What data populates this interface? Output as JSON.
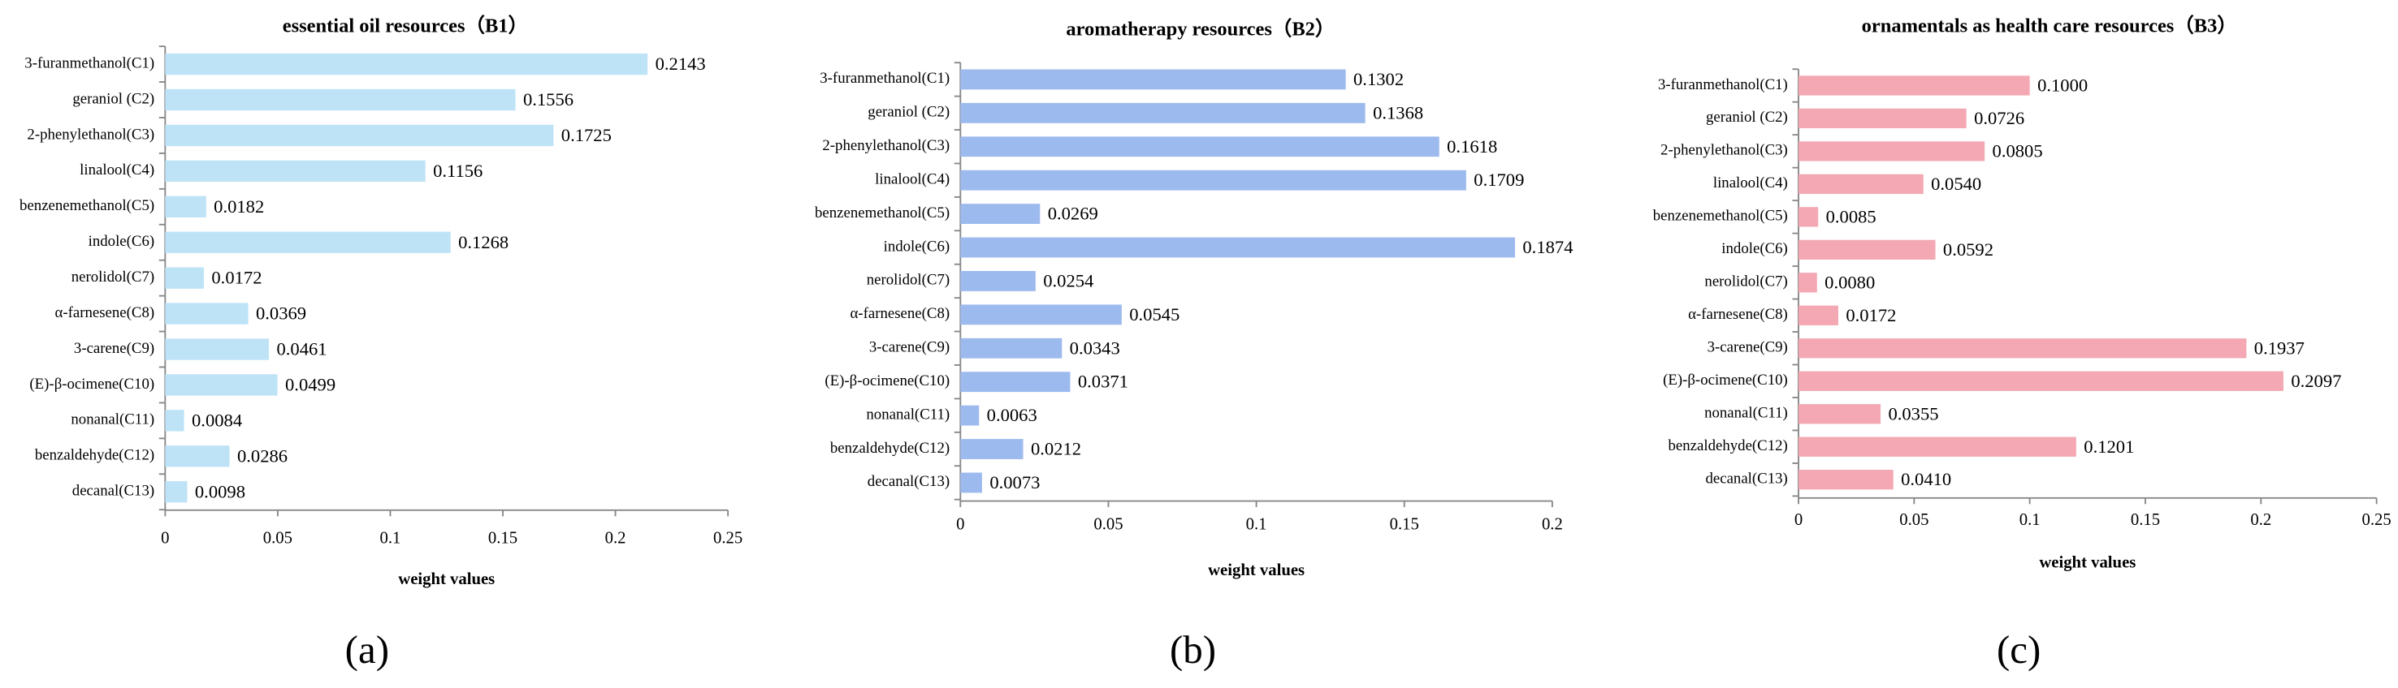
{
  "chart_data": [
    {
      "type": "bar",
      "orientation": "horizontal",
      "title": "essential oil resources（B1）",
      "xlabel": "weight values",
      "panel": "(a)",
      "categories": [
        "3-furanmethanol(C1)",
        "geraniol (C2)",
        "2-phenylethanol(C3)",
        "linalool(C4)",
        "benzenemethanol(C5)",
        "indole(C6)",
        "nerolidol(C7)",
        "α-farnesene(C8)",
        "3-carene(C9)",
        "(E)-β-ocimene(C10)",
        "nonanal(C11)",
        "benzaldehyde(C12)",
        "decanal(C13)"
      ],
      "values": [
        0.2143,
        0.1556,
        0.1725,
        0.1156,
        0.0182,
        0.1268,
        0.0172,
        0.0369,
        0.0461,
        0.0499,
        0.0084,
        0.0286,
        0.0098
      ],
      "value_labels": [
        "0.2143",
        "0.1556",
        "0.1725",
        "0.1156",
        "0.0182",
        "0.1268",
        "0.0172",
        "0.0369",
        "0.0461",
        "0.0499",
        "0.0084",
        "0.0286",
        "0.0098"
      ],
      "color": "#bfe3f6",
      "xlim": [
        0,
        0.25
      ],
      "xticks": [
        0,
        0.05,
        0.1,
        0.15,
        0.2,
        0.25
      ]
    },
    {
      "type": "bar",
      "orientation": "horizontal",
      "title": "aromatherapy resources（B2）",
      "xlabel": "weight values",
      "panel": "(b)",
      "categories": [
        "3-furanmethanol(C1)",
        "geraniol (C2)",
        "2-phenylethanol(C3)",
        "linalool(C4)",
        "benzenemethanol(C5)",
        "indole(C6)",
        "nerolidol(C7)",
        "α-farnesene(C8)",
        "3-carene(C9)",
        "(E)-β-ocimene(C10)",
        "nonanal(C11)",
        "benzaldehyde(C12)",
        "decanal(C13)"
      ],
      "values": [
        0.1302,
        0.1368,
        0.1618,
        0.1709,
        0.0269,
        0.1874,
        0.0254,
        0.0545,
        0.0343,
        0.0371,
        0.0063,
        0.0212,
        0.0073
      ],
      "value_labels": [
        "0.1302",
        "0.1368",
        "0.1618",
        "0.1709",
        "0.0269",
        "0.1874",
        "0.0254",
        "0.0545",
        "0.0343",
        "0.0371",
        "0.0063",
        "0.0212",
        "0.0073"
      ],
      "color": "#9dbaee",
      "xlim": [
        0,
        0.2
      ],
      "xticks": [
        0,
        0.05,
        0.1,
        0.15,
        0.2
      ]
    },
    {
      "type": "bar",
      "orientation": "horizontal",
      "title": "ornamentals as health care resources（B3）",
      "xlabel": "weight values",
      "panel": "(c)",
      "categories": [
        "3-furanmethanol(C1)",
        "geraniol (C2)",
        "2-phenylethanol(C3)",
        "linalool(C4)",
        "benzenemethanol(C5)",
        "indole(C6)",
        "nerolidol(C7)",
        "α-farnesene(C8)",
        "3-carene(C9)",
        "(E)-β-ocimene(C10)",
        "nonanal(C11)",
        "benzaldehyde(C12)",
        "decanal(C13)"
      ],
      "values": [
        0.1,
        0.0726,
        0.0805,
        0.054,
        0.0085,
        0.0592,
        0.008,
        0.0172,
        0.1937,
        0.2097,
        0.0355,
        0.1201,
        0.041
      ],
      "value_labels": [
        "0.1000",
        "0.0726",
        "0.0805",
        "0.0540",
        "0.0085",
        "0.0592",
        "0.0080",
        "0.0172",
        "0.1937",
        "0.2097",
        "0.0355",
        "0.1201",
        "0.0410"
      ],
      "color": "#f4a8b3",
      "xlim": [
        0,
        0.25
      ],
      "xticks": [
        0,
        0.05,
        0.1,
        0.15,
        0.2,
        0.25
      ]
    }
  ]
}
